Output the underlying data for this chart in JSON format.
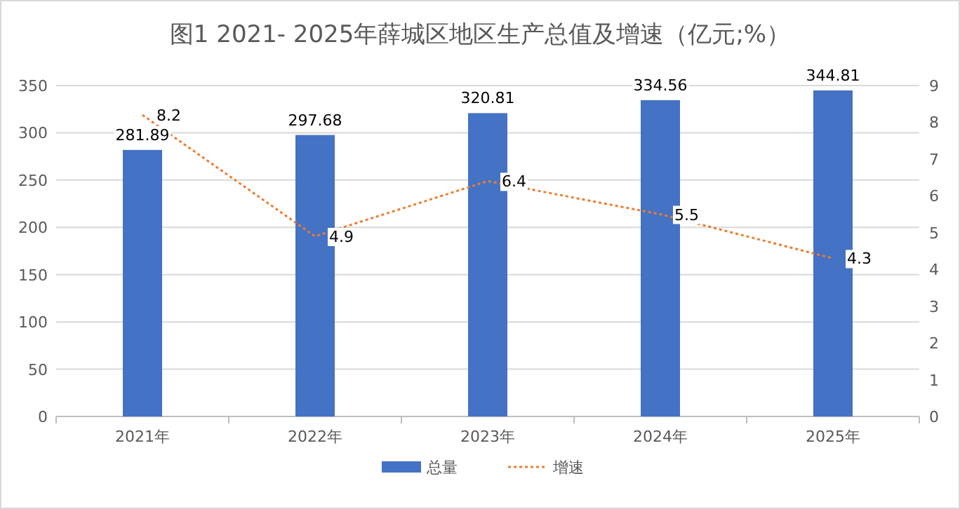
{
  "chart_data": {
    "type": "bar",
    "title": "图1 2021- 2025年薛城区地区生产总值及增速（亿元;%）",
    "categories": [
      "2021年",
      "2022年",
      "2023年",
      "2024年",
      "2025年"
    ],
    "series": [
      {
        "name": "总量",
        "color": "#4472c4",
        "values": [
          281.89,
          297.68,
          320.81,
          334.56,
          344.81
        ]
      },
      {
        "name": "增速",
        "type": "line",
        "axis": "y2",
        "color": "#ed7d31",
        "line_style": "dotted",
        "values": [
          8.2,
          4.9,
          6.4,
          5.5,
          4.3
        ]
      }
    ],
    "ylim": [
      0,
      350
    ],
    "yticks": [
      0,
      50,
      100,
      150,
      200,
      250,
      300,
      350
    ],
    "y2lim": [
      0,
      9
    ],
    "y2ticks": [
      0,
      1,
      2,
      3,
      4,
      5,
      6,
      7,
      8,
      9
    ],
    "grid": "y",
    "legend": "bottom",
    "data_labels": true
  }
}
